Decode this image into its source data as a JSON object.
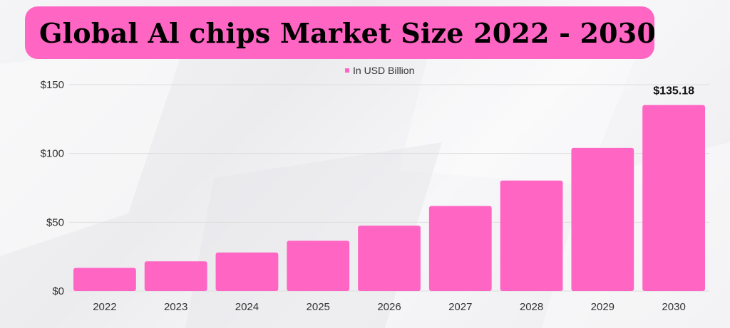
{
  "title": "Global Al chips Market Size 2022 - 2030",
  "legend": {
    "label": "In USD Billion"
  },
  "colors": {
    "bar": "#ff66c4",
    "banner": "#ff66c4",
    "grid": "#dddddd",
    "text": "#333333"
  },
  "chart_data": {
    "type": "bar",
    "categories": [
      "2022",
      "2023",
      "2024",
      "2025",
      "2026",
      "2027",
      "2028",
      "2029",
      "2030"
    ],
    "series": [
      {
        "name": "In USD Billion",
        "values": [
          16.8,
          21.6,
          28.0,
          36.5,
          47.5,
          61.8,
          80.3,
          104.0,
          135.18
        ]
      }
    ],
    "ylim": [
      0,
      150
    ],
    "yticks": [
      0,
      50,
      100,
      150
    ],
    "ytick_labels": [
      "$0",
      "$50",
      "$100",
      "$150"
    ],
    "annotations": [
      {
        "category": "2030",
        "text": "$135.18"
      }
    ],
    "grid": true,
    "legend_position": "top-center"
  }
}
